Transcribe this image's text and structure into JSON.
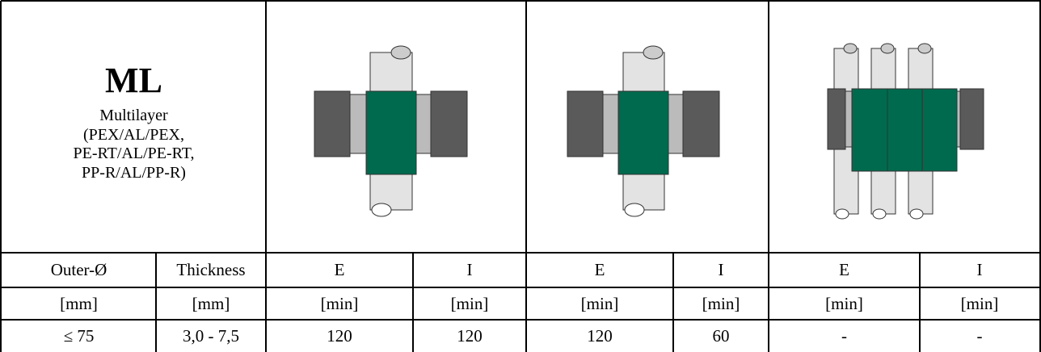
{
  "table": {
    "title": "ML",
    "subtitle_lines": [
      "Multilayer",
      "(PEX/AL/PEX,",
      "PE-RT/AL/PE-RT,",
      "PP-R/AL/PP-R)"
    ],
    "header": [
      "Outer-Ø",
      "Thickness",
      "E",
      "I",
      "E",
      "I",
      "E",
      "I"
    ],
    "units": [
      "[mm]",
      "[mm]",
      "[min]",
      "[min]",
      "[min]",
      "[min]",
      "[min]",
      "[min]"
    ],
    "rows": [
      [
        "≤ 75",
        "3,0 - 7,5",
        "120",
        "120",
        "120",
        "60",
        "-",
        "-"
      ]
    ]
  }
}
